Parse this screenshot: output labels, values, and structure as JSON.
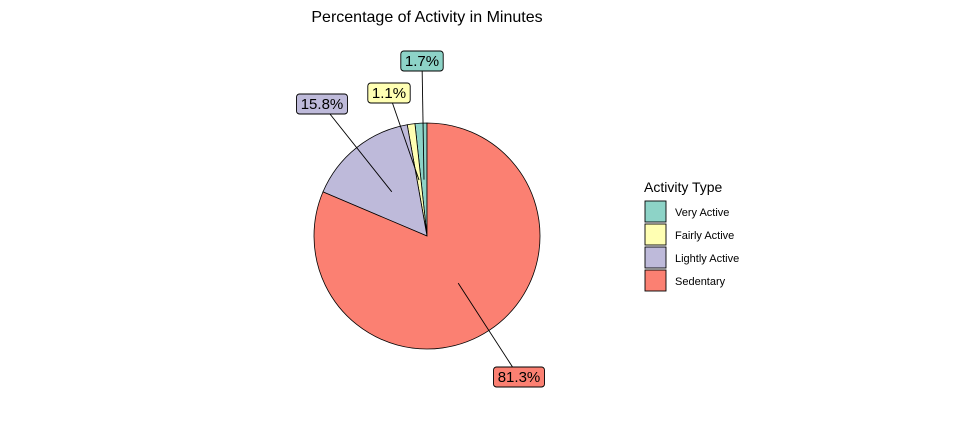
{
  "chart_data": {
    "type": "pie",
    "title": "Percentage of Activity in Minutes",
    "legend_title": "Activity Type",
    "legend_position": "right",
    "categories": [
      "Very Active",
      "Fairly Active",
      "Lightly Active",
      "Sedentary"
    ],
    "values": [
      1.7,
      1.1,
      15.8,
      81.3
    ],
    "labels": [
      "1.7%",
      "1.1%",
      "15.8%",
      "81.3%"
    ],
    "colors": [
      "#8DD3C7",
      "#FFFFB3",
      "#BEBADA",
      "#FB8072"
    ]
  }
}
